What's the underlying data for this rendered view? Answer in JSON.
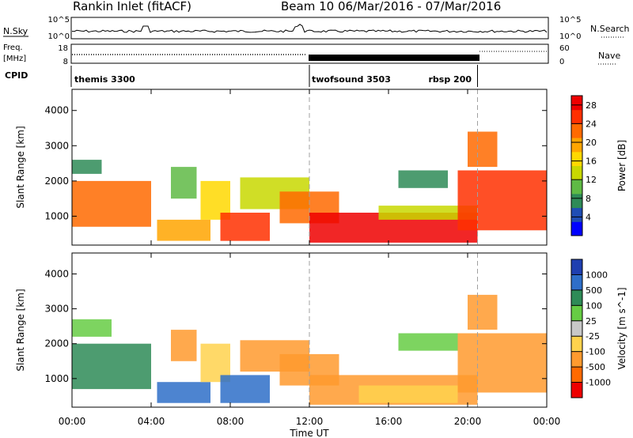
{
  "header": {
    "title_left": "Rankin Inlet (fitACF)",
    "title_right": "Beam 10  06/Mar/2016 - 07/Mar/2016"
  },
  "noise_panel": {
    "label_left": "N.Sky",
    "label_right": "N.Search",
    "yticks_left": [
      "10^5",
      "10^0"
    ],
    "yticks_right": [
      "10^5",
      "10^0"
    ]
  },
  "freq_panel": {
    "label_left_line1": "Freq.",
    "label_left_line2": "[MHz]",
    "label_right": "Nave",
    "yticks_left": [
      "18",
      "8"
    ],
    "yticks_right": [
      "60",
      "0"
    ]
  },
  "cpid_panel": {
    "label": "CPID",
    "segments": [
      {
        "name": "themis 3300",
        "start_hour": 0,
        "end_hour": 12
      },
      {
        "name": "twofsound 3503",
        "start_hour": 12,
        "end_hour": 20.5
      },
      {
        "name": "rbsp 200",
        "start_hour": 20.5,
        "end_hour": 24
      }
    ]
  },
  "colors": {
    "power_scale": [
      "#0000ff",
      "#1e4db4",
      "#2e8b57",
      "#5fba45",
      "#c8d800",
      "#ffd800",
      "#ffa500",
      "#ff6a00",
      "#ff3000",
      "#ee0000"
    ],
    "velocity_scale": [
      "#1f3fb0",
      "#2e6ec8",
      "#2e8b57",
      "#66cc44",
      "#c8c8c8",
      "#ffd24d",
      "#ff9a2e",
      "#ff6a00",
      "#ee0000"
    ],
    "vertical_marker": "#a0a0a0"
  },
  "chart_data": [
    {
      "type": "heatmap",
      "title": "",
      "xlabel": "Time UT",
      "ylabel": "Slant Range [km]",
      "x_ticks": [
        "00:00",
        "04:00",
        "08:00",
        "12:00",
        "16:00",
        "20:00",
        "00:00"
      ],
      "y_ticks": [
        1000,
        2000,
        3000,
        4000
      ],
      "xlim_hours": [
        0,
        24
      ],
      "ylim_km": [
        180,
        4600
      ],
      "colorbar_label": "Power [dB]",
      "colorbar_ticks": [
        4,
        8,
        12,
        16,
        20,
        24,
        28
      ],
      "colorbar_range": [
        0,
        30
      ],
      "vertical_markers_hours": [
        12,
        20.5
      ],
      "patches": [
        {
          "t0": 0.0,
          "t1": 4.0,
          "r0": 700,
          "r1": 2000,
          "val": 22
        },
        {
          "t0": 0.0,
          "t1": 1.5,
          "r0": 2200,
          "r1": 2600,
          "val": 8
        },
        {
          "t0": 5.0,
          "t1": 6.3,
          "r0": 1500,
          "r1": 2400,
          "val": 10
        },
        {
          "t0": 4.3,
          "t1": 7.0,
          "r0": 300,
          "r1": 900,
          "val": 18
        },
        {
          "t0": 6.5,
          "t1": 8.0,
          "r0": 900,
          "r1": 2000,
          "val": 16
        },
        {
          "t0": 7.5,
          "t1": 10.0,
          "r0": 300,
          "r1": 1100,
          "val": 25
        },
        {
          "t0": 8.5,
          "t1": 12.0,
          "r0": 1200,
          "r1": 2100,
          "val": 12
        },
        {
          "t0": 10.5,
          "t1": 13.5,
          "r0": 800,
          "r1": 1700,
          "val": 22
        },
        {
          "t0": 12.0,
          "t1": 20.5,
          "r0": 250,
          "r1": 1100,
          "val": 27
        },
        {
          "t0": 15.5,
          "t1": 20.5,
          "r0": 900,
          "r1": 1300,
          "val": 14
        },
        {
          "t0": 19.5,
          "t1": 24.0,
          "r0": 600,
          "r1": 2300,
          "val": 24
        },
        {
          "t0": 20.0,
          "t1": 21.5,
          "r0": 2400,
          "r1": 3400,
          "val": 22
        },
        {
          "t0": 16.5,
          "t1": 19.0,
          "r0": 1800,
          "r1": 2300,
          "val": 8
        }
      ]
    },
    {
      "type": "heatmap",
      "title": "",
      "xlabel": "Time UT",
      "ylabel": "Slant Range [km]",
      "x_ticks": [
        "00:00",
        "04:00",
        "08:00",
        "12:00",
        "16:00",
        "20:00",
        "00:00"
      ],
      "y_ticks": [
        1000,
        2000,
        3000,
        4000
      ],
      "xlim_hours": [
        0,
        24
      ],
      "ylim_km": [
        180,
        4600
      ],
      "colorbar_label": "Velocity [m s^-1]",
      "colorbar_ticks": [
        1000,
        500,
        100,
        25,
        -25,
        -100,
        -500,
        -1000
      ],
      "colorbar_range": [
        -1200,
        1200
      ],
      "vertical_markers_hours": [
        12,
        20.5
      ],
      "patches": [
        {
          "t0": 0.0,
          "t1": 4.0,
          "r0": 700,
          "r1": 2000,
          "val": 60
        },
        {
          "t0": 0.0,
          "t1": 2.0,
          "r0": 2200,
          "r1": 2700,
          "val": 0
        },
        {
          "t0": 5.0,
          "t1": 6.3,
          "r0": 1500,
          "r1": 2400,
          "val": -150
        },
        {
          "t0": 4.3,
          "t1": 7.0,
          "r0": 300,
          "r1": 900,
          "val": 150
        },
        {
          "t0": 6.5,
          "t1": 8.0,
          "r0": 900,
          "r1": 2000,
          "val": -60
        },
        {
          "t0": 7.5,
          "t1": 10.0,
          "r0": 300,
          "r1": 1100,
          "val": 200
        },
        {
          "t0": 8.5,
          "t1": 12.0,
          "r0": 1200,
          "r1": 2100,
          "val": -200
        },
        {
          "t0": 10.5,
          "t1": 13.5,
          "r0": 800,
          "r1": 1700,
          "val": -400
        },
        {
          "t0": 12.0,
          "t1": 20.5,
          "r0": 250,
          "r1": 1100,
          "val": -350
        },
        {
          "t0": 14.5,
          "t1": 19.5,
          "r0": 300,
          "r1": 800,
          "val": -60
        },
        {
          "t0": 19.5,
          "t1": 24.0,
          "r0": 600,
          "r1": 2300,
          "val": -500
        },
        {
          "t0": 20.0,
          "t1": 21.5,
          "r0": 2400,
          "r1": 3400,
          "val": -300
        },
        {
          "t0": 16.5,
          "t1": 19.5,
          "r0": 1800,
          "r1": 2300,
          "val": 0
        }
      ]
    }
  ]
}
